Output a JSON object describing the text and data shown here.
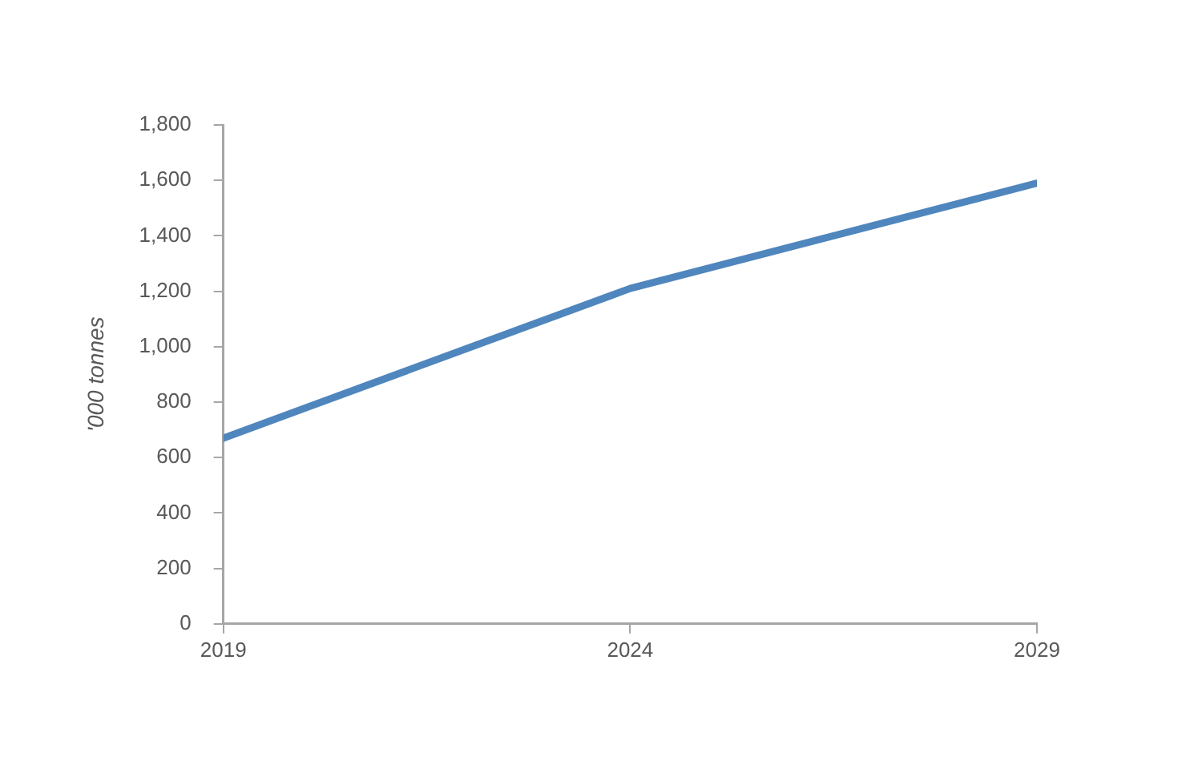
{
  "chart_data": {
    "type": "line",
    "ylabel": "'000 tonnes",
    "x": [
      2019,
      2024,
      2029
    ],
    "series": [
      {
        "color": "#4f86bd",
        "values": [
          670,
          1210,
          1590
        ]
      }
    ],
    "xlim": [
      2019,
      2029
    ],
    "xticks": [
      2019,
      2024,
      2029
    ],
    "ylim": [
      0,
      1800
    ],
    "yticks": [
      0,
      200,
      400,
      600,
      800,
      {
        "value": 1000,
        "label": "1,000"
      },
      {
        "value": 1200,
        "label": "1,200"
      },
      {
        "value": 1400,
        "label": "1,400"
      },
      {
        "value": 1600,
        "label": "1,600"
      },
      {
        "value": 1800,
        "label": "1,800"
      }
    ],
    "grid": false,
    "legend": false,
    "marker": "none",
    "line_style": "solid"
  }
}
